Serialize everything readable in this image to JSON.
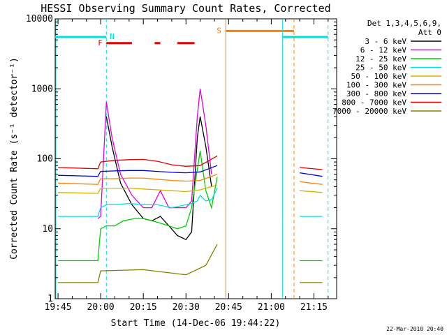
{
  "chart_data": {
    "type": "line",
    "title": "HESSI Observing Summary Count Rates, Corrected",
    "xlabel": "Start Time (14-Dec-06 19:44:22)",
    "ylabel": "Corrected Count Rate (s⁻¹ detector⁻¹)",
    "y_scale": "log",
    "ylim": [
      1,
      10000
    ],
    "xlim": [
      "19:44",
      "21:23"
    ],
    "x_ticks": [
      "19:45",
      "20:00",
      "20:15",
      "20:30",
      "20:45",
      "21:00",
      "21:15"
    ],
    "y_ticks": [
      "1",
      "10",
      "100",
      "1000",
      "10000"
    ],
    "grid": false,
    "legend_header": [
      "Det 1,3,4,5,6,9,",
      "Att 0"
    ],
    "legend_position": "right",
    "series": [
      {
        "name": "3 - 6 keV",
        "color": "#000000",
        "x": [
          "19:45",
          "19:59",
          "20:00",
          "20:02",
          "20:04",
          "20:07",
          "20:11",
          "20:15",
          "20:18",
          "20:21",
          "20:24",
          "20:27",
          "20:30",
          "20:32",
          "20:34",
          "20:35",
          "20:37",
          "20:39",
          "20:41"
        ],
        "y": [
          null,
          null,
          null,
          400,
          150,
          45,
          22,
          14,
          13,
          15,
          11,
          8,
          7,
          9,
          200,
          400,
          150,
          40,
          null
        ]
      },
      {
        "name": "6 - 12 keV",
        "color": "#e000e0",
        "x": [
          "19:59",
          "20:00",
          "20:02",
          "20:04",
          "20:07",
          "20:11",
          "20:15",
          "20:18",
          "20:21",
          "20:24",
          "20:27",
          "20:30",
          "20:32",
          "20:34",
          "20:35",
          "20:37",
          "20:39",
          "20:41"
        ],
        "y": [
          14,
          15,
          650,
          200,
          60,
          30,
          20,
          20,
          35,
          20,
          20,
          20,
          25,
          400,
          1000,
          300,
          60,
          null
        ]
      },
      {
        "name": "12 - 25 keV",
        "color": "#00d000",
        "x": [
          "19:45",
          "19:59",
          "20:00",
          "20:02",
          "20:05",
          "20:08",
          "20:12",
          "20:15",
          "20:18",
          "20:21",
          "20:24",
          "20:27",
          "20:30",
          "20:32",
          "20:34",
          "20:35",
          "20:37",
          "20:39",
          "20:41"
        ],
        "y": [
          3.5,
          3.5,
          10,
          11,
          11,
          13,
          14,
          14,
          13,
          12,
          11,
          10,
          11,
          20,
          70,
          130,
          35,
          20,
          55
        ]
      },
      {
        "name": "25 - 50 keV",
        "color": "#00e0e0",
        "x": [
          "19:45",
          "19:59",
          "20:00",
          "20:02",
          "20:05",
          "20:10",
          "20:15",
          "20:20",
          "20:25",
          "20:30",
          "20:32",
          "20:34",
          "20:35",
          "20:37",
          "20:39",
          "20:41"
        ],
        "y": [
          15,
          15,
          20,
          22,
          22,
          23,
          22,
          22,
          20,
          22,
          23,
          25,
          30,
          25,
          26,
          38
        ]
      },
      {
        "name": "50 - 100 keV",
        "color": "#d8b000",
        "x": [
          "19:45",
          "19:59",
          "20:00",
          "20:05",
          "20:10",
          "20:15",
          "20:20",
          "20:25",
          "20:30",
          "20:35",
          "20:41"
        ],
        "y": [
          33,
          32,
          38,
          38,
          38,
          37,
          36,
          35,
          34,
          36,
          42
        ]
      },
      {
        "name": "100 - 300 keV",
        "color": "#ff8000",
        "x": [
          "19:45",
          "19:59",
          "20:00",
          "20:05",
          "20:10",
          "20:15",
          "20:20",
          "20:25",
          "20:30",
          "20:35",
          "20:41"
        ],
        "y": [
          45,
          43,
          52,
          52,
          53,
          53,
          51,
          49,
          48,
          49,
          60
        ]
      },
      {
        "name": "300 - 800 keV",
        "color": "#0000e0",
        "x": [
          "19:45",
          "19:59",
          "20:00",
          "20:05",
          "20:10",
          "20:15",
          "20:20",
          "20:25",
          "20:30",
          "20:35",
          "20:41"
        ],
        "y": [
          58,
          56,
          66,
          67,
          68,
          68,
          66,
          64,
          63,
          65,
          80
        ]
      },
      {
        "name": "800 - 7000 keV",
        "color": "#e00000",
        "x": [
          "19:45",
          "19:59",
          "20:00",
          "20:05",
          "20:10",
          "20:15",
          "20:20",
          "20:25",
          "20:30",
          "20:35",
          "20:41"
        ],
        "y": [
          75,
          72,
          90,
          95,
          97,
          98,
          92,
          82,
          78,
          80,
          110
        ]
      },
      {
        "name": "7000 - 20000 keV",
        "color": "#808000",
        "x": [
          "19:45",
          "19:59",
          "20:00",
          "20:15",
          "20:30",
          "20:37",
          "20:41"
        ],
        "y": [
          1.7,
          1.7,
          2.5,
          2.6,
          2.2,
          3,
          6
        ]
      }
    ],
    "after_gap_series": [
      {
        "color": "#e00000",
        "x": [
          "21:10",
          "21:18"
        ],
        "y": [
          75,
          70
        ]
      },
      {
        "color": "#0000e0",
        "x": [
          "21:10",
          "21:18"
        ],
        "y": [
          63,
          56
        ]
      },
      {
        "color": "#ff8000",
        "x": [
          "21:10",
          "21:18"
        ],
        "y": [
          47,
          43
        ]
      },
      {
        "color": "#d8b000",
        "x": [
          "21:10",
          "21:18"
        ],
        "y": [
          35,
          33
        ]
      },
      {
        "color": "#00e0e0",
        "x": [
          "21:10",
          "21:18"
        ],
        "y": [
          15,
          15
        ]
      },
      {
        "color": "#00d000",
        "x": [
          "21:10",
          "21:18"
        ],
        "y": [
          3.5,
          3.5
        ]
      },
      {
        "color": "#808000",
        "x": [
          "21:10",
          "21:18"
        ],
        "y": [
          1.7,
          1.7
        ]
      }
    ],
    "markers": {
      "N": {
        "label": "N",
        "color": "#00e0e0",
        "time": "20:02"
      },
      "F": {
        "label": "F",
        "color": "#e00000"
      },
      "S": {
        "label": "S",
        "color": "#ff8000",
        "time": "20:44"
      },
      "night_bars": [
        [
          "19:44",
          "20:02"
        ],
        [
          "21:04",
          "21:20"
        ]
      ],
      "night_level": 5500,
      "flare_bars": [
        [
          "20:02",
          "20:11"
        ],
        [
          "20:19",
          "20:21"
        ],
        [
          "20:27",
          "20:33"
        ]
      ],
      "flare_level": 4500,
      "saa_bar": [
        "20:44",
        "21:08"
      ],
      "saa_level": 6700,
      "vlines_cyan_dashed": [
        "20:02",
        "21:20"
      ],
      "vlines_cyan_solid": [
        "21:04"
      ],
      "vlines_orange_solid": [
        "20:44"
      ],
      "vlines_orange_dashed": [
        "21:08"
      ]
    },
    "footer": "22-Mar-2010 20:40"
  }
}
